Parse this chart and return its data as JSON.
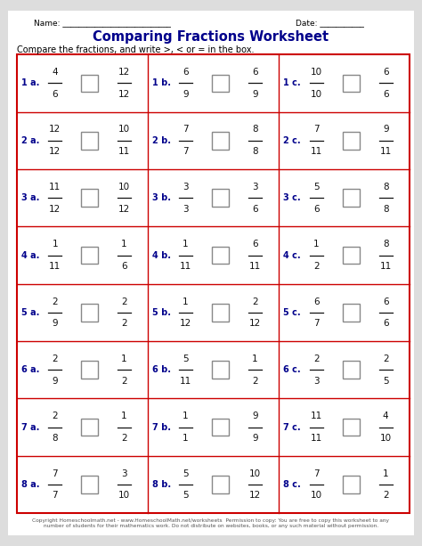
{
  "title": "Comparing Fractions Worksheet",
  "subtitle": "Compare the fractions, and write >, < or = in the box.",
  "name_label": "Name: ___________________________",
  "date_label": "Date: ___________",
  "title_color": "#00008B",
  "header_color": "#000000",
  "label_color": "#00008B",
  "grid_border_color": "#CC0000",
  "background": "#ffffff",
  "outer_bg": "#dddddd",
  "rows": [
    [
      {
        "label": "1 a.",
        "f1n": "4",
        "f1d": "6",
        "f2n": "12",
        "f2d": "12"
      },
      {
        "label": "1 b.",
        "f1n": "6",
        "f1d": "9",
        "f2n": "6",
        "f2d": "9"
      },
      {
        "label": "1 c.",
        "f1n": "10",
        "f1d": "10",
        "f2n": "6",
        "f2d": "6"
      }
    ],
    [
      {
        "label": "2 a.",
        "f1n": "12",
        "f1d": "12",
        "f2n": "10",
        "f2d": "11"
      },
      {
        "label": "2 b.",
        "f1n": "7",
        "f1d": "7",
        "f2n": "8",
        "f2d": "8"
      },
      {
        "label": "2 c.",
        "f1n": "7",
        "f1d": "11",
        "f2n": "9",
        "f2d": "11"
      }
    ],
    [
      {
        "label": "3 a.",
        "f1n": "11",
        "f1d": "12",
        "f2n": "10",
        "f2d": "12"
      },
      {
        "label": "3 b.",
        "f1n": "3",
        "f1d": "3",
        "f2n": "3",
        "f2d": "6"
      },
      {
        "label": "3 c.",
        "f1n": "5",
        "f1d": "6",
        "f2n": "8",
        "f2d": "8"
      }
    ],
    [
      {
        "label": "4 a.",
        "f1n": "1",
        "f1d": "11",
        "f2n": "1",
        "f2d": "6"
      },
      {
        "label": "4 b.",
        "f1n": "1",
        "f1d": "11",
        "f2n": "6",
        "f2d": "11"
      },
      {
        "label": "4 c.",
        "f1n": "1",
        "f1d": "2",
        "f2n": "8",
        "f2d": "11"
      }
    ],
    [
      {
        "label": "5 a.",
        "f1n": "2",
        "f1d": "9",
        "f2n": "2",
        "f2d": "2"
      },
      {
        "label": "5 b.",
        "f1n": "1",
        "f1d": "12",
        "f2n": "2",
        "f2d": "12"
      },
      {
        "label": "5 c.",
        "f1n": "6",
        "f1d": "7",
        "f2n": "6",
        "f2d": "6"
      }
    ],
    [
      {
        "label": "6 a.",
        "f1n": "2",
        "f1d": "9",
        "f2n": "1",
        "f2d": "2"
      },
      {
        "label": "6 b.",
        "f1n": "5",
        "f1d": "11",
        "f2n": "1",
        "f2d": "2"
      },
      {
        "label": "6 c.",
        "f1n": "2",
        "f1d": "3",
        "f2n": "2",
        "f2d": "5"
      }
    ],
    [
      {
        "label": "7 a.",
        "f1n": "2",
        "f1d": "8",
        "f2n": "1",
        "f2d": "2"
      },
      {
        "label": "7 b.",
        "f1n": "1",
        "f1d": "1",
        "f2n": "9",
        "f2d": "9"
      },
      {
        "label": "7 c.",
        "f1n": "11",
        "f1d": "11",
        "f2n": "4",
        "f2d": "10"
      }
    ],
    [
      {
        "label": "8 a.",
        "f1n": "7",
        "f1d": "7",
        "f2n": "3",
        "f2d": "10"
      },
      {
        "label": "8 b.",
        "f1n": "5",
        "f1d": "5",
        "f2n": "10",
        "f2d": "12"
      },
      {
        "label": "8 c.",
        "f1n": "7",
        "f1d": "10",
        "f2n": "1",
        "f2d": "2"
      }
    ]
  ],
  "footer_line1": "Copyright Homeschoolmath.net - www.HomeschoolMath.net/worksheets  Permission to copy: You are free to copy this worksheet to any",
  "footer_line2": "number of students for their mathematics work. Do not distribute on websites, books, or any such material without permission."
}
